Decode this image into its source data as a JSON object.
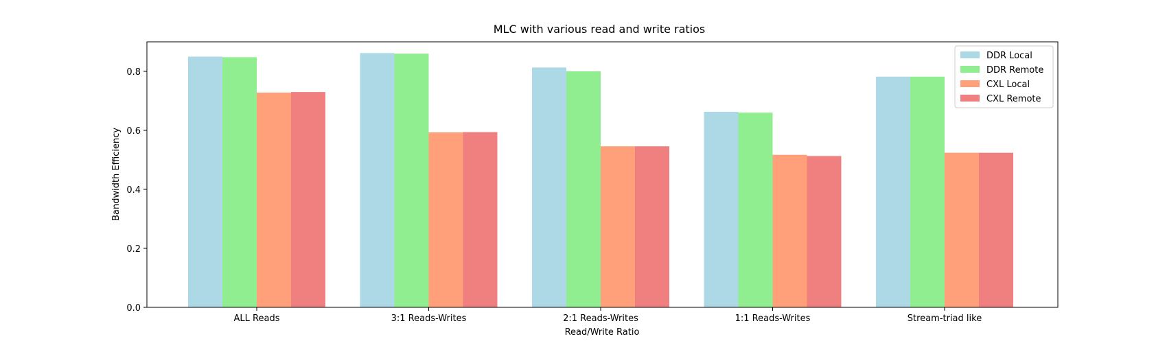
{
  "chart_data": {
    "type": "bar",
    "title": "MLC with various read and write ratios",
    "xlabel": "Read/Write Ratio",
    "ylabel": "Bandwidth Efficiency",
    "ylim": [
      0,
      0.9
    ],
    "yticks": [
      "0.0",
      "0.2",
      "0.4",
      "0.6",
      "0.8"
    ],
    "grid": false,
    "legend_position": "top-right",
    "categories": [
      "ALL Reads",
      "3:1 Reads-Writes",
      "2:1 Reads-Writes",
      "1:1 Reads-Writes",
      "Stream-triad like"
    ],
    "series": [
      {
        "name": "DDR Local",
        "color": "#add8e6",
        "values": [
          0.85,
          0.862,
          0.813,
          0.663,
          0.782
        ]
      },
      {
        "name": "DDR Remote",
        "color": "#90ee90",
        "values": [
          0.848,
          0.86,
          0.8,
          0.66,
          0.782
        ]
      },
      {
        "name": "CXL Local",
        "color": "#ffa07a",
        "values": [
          0.728,
          0.593,
          0.546,
          0.517,
          0.524
        ]
      },
      {
        "name": "CXL Remote",
        "color": "#f08080",
        "values": [
          0.73,
          0.594,
          0.546,
          0.513,
          0.524
        ]
      }
    ]
  }
}
